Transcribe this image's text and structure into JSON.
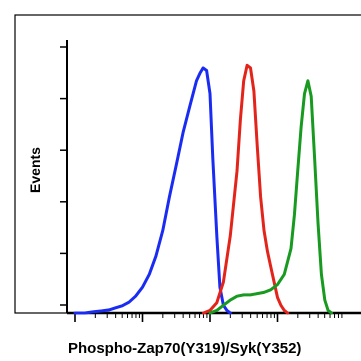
{
  "chart_data": {
    "type": "line",
    "title": "",
    "xlabel": "Phospho-Zap70(Y319)/Syk(Y352)",
    "ylabel": "Events",
    "xscale": "log",
    "xlim": [
      1,
      10000
    ],
    "ylim": [
      0,
      100
    ],
    "grid": false,
    "legend": "none",
    "series": [
      {
        "color": "#1a2cf2",
        "x": [
          1,
          1.4,
          1.9,
          2.5,
          3.2,
          4.0,
          5.0,
          6.3,
          7.9,
          10,
          12.6,
          15.8,
          20,
          25,
          32,
          40,
          50,
          63,
          71,
          79,
          89,
          100,
          110,
          126,
          140,
          158,
          178,
          200
        ],
        "y": [
          0,
          0,
          0.5,
          0.8,
          1.2,
          2.0,
          2.8,
          4.2,
          6.5,
          10,
          15,
          22,
          32,
          45,
          58,
          70,
          80,
          90,
          93,
          95,
          94,
          85,
          60,
          30,
          10,
          3,
          1,
          0
        ]
      },
      {
        "color": "#e3241b",
        "x": [
          80,
          100,
          126,
          158,
          200,
          251,
          282,
          316,
          354,
          398,
          447,
          501,
          562,
          631,
          708,
          794,
          891,
          1000,
          1122,
          1259,
          1413
        ],
        "y": [
          0,
          1,
          4,
          12,
          30,
          55,
          75,
          90,
          96,
          95,
          86,
          65,
          45,
          32,
          24,
          18,
          12,
          6,
          3,
          1,
          0
        ]
      },
      {
        "color": "#179a1f",
        "x": [
          100,
          126,
          158,
          200,
          251,
          316,
          398,
          501,
          631,
          794,
          1000,
          1259,
          1585,
          1778,
          1995,
          2239,
          2512,
          2818,
          3162,
          3548,
          3981,
          4467,
          5012,
          5623,
          6310
        ],
        "y": [
          0,
          1,
          3,
          5,
          6.5,
          7,
          7,
          7.5,
          8,
          9,
          11,
          15,
          25,
          38,
          55,
          72,
          85,
          90,
          84,
          60,
          35,
          15,
          5,
          1,
          0
        ]
      }
    ]
  }
}
